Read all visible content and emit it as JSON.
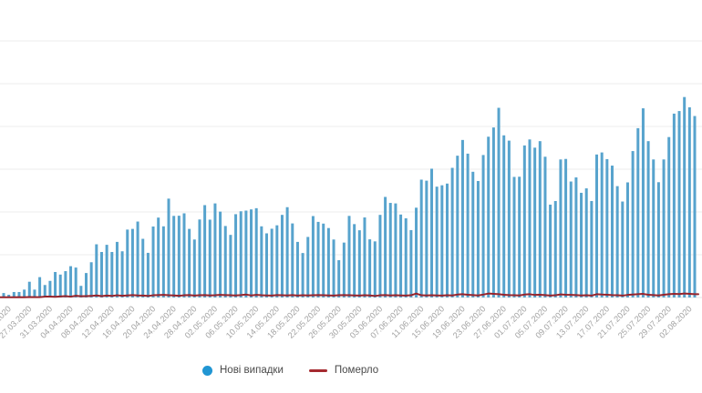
{
  "chart_data": {
    "type": "bar",
    "title": "",
    "xlabel": "",
    "ylabel": "",
    "ylim": [
      0,
      1500
    ],
    "y_gridline_step": 250,
    "grid": true,
    "y_axis_labels_visible": false,
    "legend_position": "bottom",
    "background_color": "#ffffff",
    "gridline_color": "#ececec",
    "axis_line_color": "#e4e4e4",
    "tick_label_color": "#a3a3a3",
    "x_tick_step": 4,
    "x_tick_start_index": 1,
    "x_tick_labels": [
      "23.03.2020",
      "27.03.2020",
      "31.03.2020",
      "04.04.2020",
      "08.04.2020",
      "12.04.2020",
      "16.04.2020",
      "20.04.2020",
      "24.04.2020",
      "28.04.2020",
      "02.05.2020",
      "06.05.2020",
      "10.05.2020",
      "14.05.2020",
      "18.05.2020",
      "22.05.2020",
      "26.05.2020",
      "30.05.2020",
      "03.06.2020",
      "07.06.2020",
      "11.06.2020",
      "15.06.2020",
      "19.06.2020",
      "23.06.2020",
      "27.06.2020",
      "01.07.2020",
      "05.07.2020",
      "09.07.2020",
      "13.07.2020",
      "17.07.2020",
      "21.07.2020",
      "25.07.2020",
      "29.07.2020",
      "02.08.2020"
    ],
    "categories": [
      "22.03.2020",
      "23.03.2020",
      "24.03.2020",
      "25.03.2020",
      "26.03.2020",
      "27.03.2020",
      "28.03.2020",
      "29.03.2020",
      "30.03.2020",
      "31.03.2020",
      "01.04.2020",
      "02.04.2020",
      "03.04.2020",
      "04.04.2020",
      "05.04.2020",
      "06.04.2020",
      "07.04.2020",
      "08.04.2020",
      "09.04.2020",
      "10.04.2020",
      "11.04.2020",
      "12.04.2020",
      "13.04.2020",
      "14.04.2020",
      "15.04.2020",
      "16.04.2020",
      "17.04.2020",
      "18.04.2020",
      "19.04.2020",
      "20.04.2020",
      "21.04.2020",
      "22.04.2020",
      "23.04.2020",
      "24.04.2020",
      "25.04.2020",
      "26.04.2020",
      "27.04.2020",
      "28.04.2020",
      "29.04.2020",
      "30.04.2020",
      "01.05.2020",
      "02.05.2020",
      "03.05.2020",
      "04.05.2020",
      "05.05.2020",
      "06.05.2020",
      "07.05.2020",
      "08.05.2020",
      "09.05.2020",
      "10.05.2020",
      "11.05.2020",
      "12.05.2020",
      "13.05.2020",
      "14.05.2020",
      "15.05.2020",
      "16.05.2020",
      "17.05.2020",
      "18.05.2020",
      "19.05.2020",
      "20.05.2020",
      "21.05.2020",
      "22.05.2020",
      "23.05.2020",
      "24.05.2020",
      "25.05.2020",
      "26.05.2020",
      "27.05.2020",
      "28.05.2020",
      "29.05.2020",
      "30.05.2020",
      "31.05.2020",
      "01.06.2020",
      "02.06.2020",
      "03.06.2020",
      "04.06.2020",
      "05.06.2020",
      "06.06.2020",
      "07.06.2020",
      "08.06.2020",
      "09.06.2020",
      "10.06.2020",
      "11.06.2020",
      "12.06.2020",
      "13.06.2020",
      "14.06.2020",
      "15.06.2020",
      "16.06.2020",
      "17.06.2020",
      "18.06.2020",
      "19.06.2020",
      "20.06.2020",
      "21.06.2020",
      "22.06.2020",
      "23.06.2020",
      "24.06.2020",
      "25.06.2020",
      "26.06.2020",
      "27.06.2020",
      "28.06.2020",
      "29.06.2020",
      "30.06.2020",
      "01.07.2020",
      "02.07.2020",
      "03.07.2020",
      "04.07.2020",
      "05.07.2020",
      "06.07.2020",
      "07.07.2020",
      "08.07.2020",
      "09.07.2020",
      "10.07.2020",
      "11.07.2020",
      "12.07.2020",
      "13.07.2020",
      "14.07.2020",
      "15.07.2020",
      "16.07.2020",
      "17.07.2020",
      "18.07.2020",
      "19.07.2020",
      "20.07.2020",
      "21.07.2020",
      "22.07.2020",
      "23.07.2020",
      "24.07.2020",
      "25.07.2020",
      "26.07.2020",
      "27.07.2020",
      "28.07.2020",
      "29.07.2020",
      "30.07.2020",
      "31.07.2020",
      "01.08.2020",
      "02.08.2020",
      "03.08.2020"
    ],
    "series": [
      {
        "name": "Нові випадки",
        "type": "bar",
        "color": "#57a3cd",
        "legend_marker_color": "#2196d3",
        "values": [
          26,
          16,
          32,
          32,
          46,
          92,
          46,
          119,
          73,
          97,
          149,
          134,
          154,
          183,
          175,
          68,
          143,
          206,
          311,
          266,
          308,
          266,
          325,
          270,
          397,
          401,
          444,
          343,
          261,
          415,
          467,
          416,
          578,
          477,
          478,
          492,
          401,
          339,
          456,
          540,
          455,
          550,
          502,
          418,
          366,
          487,
          504,
          508,
          515,
          522,
          416,
          375,
          402,
          422,
          483,
          528,
          433,
          325,
          260,
          354,
          476,
          442,
          432,
          406,
          339,
          218,
          321,
          477,
          429,
          393,
          468,
          340,
          328,
          483,
          588,
          553,
          550,
          485,
          463,
          394,
          525,
          689,
          683,
          753,
          648,
          656,
          666,
          758,
          829,
          921,
          841,
          735,
          681,
          833,
          940,
          994,
          1109,
          948,
          917,
          705,
          706,
          889,
          924,
          876,
          914,
          823,
          543,
          564,
          807,
          810,
          678,
          702,
          612,
          638,
          564,
          836,
          848,
          809,
          771,
          651,
          561,
          673,
          856,
          990,
          1106,
          914,
          807,
          674,
          807,
          938,
          1075,
          1090,
          1172,
          1112,
          1061
        ]
      },
      {
        "name": "Померло",
        "type": "line",
        "color": "#96232b",
        "legend_marker_color": "#a52a30",
        "values": [
          1,
          1,
          1,
          2,
          1,
          3,
          2,
          2,
          5,
          5,
          4,
          6,
          8,
          5,
          10,
          7,
          8,
          9,
          12,
          8,
          11,
          9,
          13,
          10,
          12,
          14,
          12,
          11,
          9,
          13,
          14,
          15,
          13,
          12,
          10,
          13,
          14,
          11,
          13,
          14,
          12,
          13,
          15,
          14,
          13,
          12,
          14,
          17,
          12,
          15,
          13,
          12,
          11,
          14,
          13,
          12,
          14,
          11,
          13,
          12,
          13,
          14,
          13,
          12,
          11,
          13,
          14,
          13,
          12,
          11,
          13,
          12,
          9,
          13,
          14,
          12,
          13,
          12,
          11,
          13,
          23,
          13,
          12,
          13,
          12,
          11,
          13,
          12,
          17,
          19,
          16,
          14,
          12,
          17,
          23,
          21,
          19,
          16,
          14,
          13,
          12,
          17,
          19,
          15,
          16,
          14,
          11,
          13,
          18,
          16,
          15,
          14,
          12,
          13,
          11,
          19,
          17,
          16,
          14,
          13,
          11,
          15,
          17,
          19,
          21,
          16,
          14,
          12,
          16,
          19,
          21,
          20,
          23,
          21,
          19
        ]
      }
    ]
  },
  "legend": {
    "items": [
      {
        "label": "Нові випадки"
      },
      {
        "label": "Померло"
      }
    ]
  }
}
